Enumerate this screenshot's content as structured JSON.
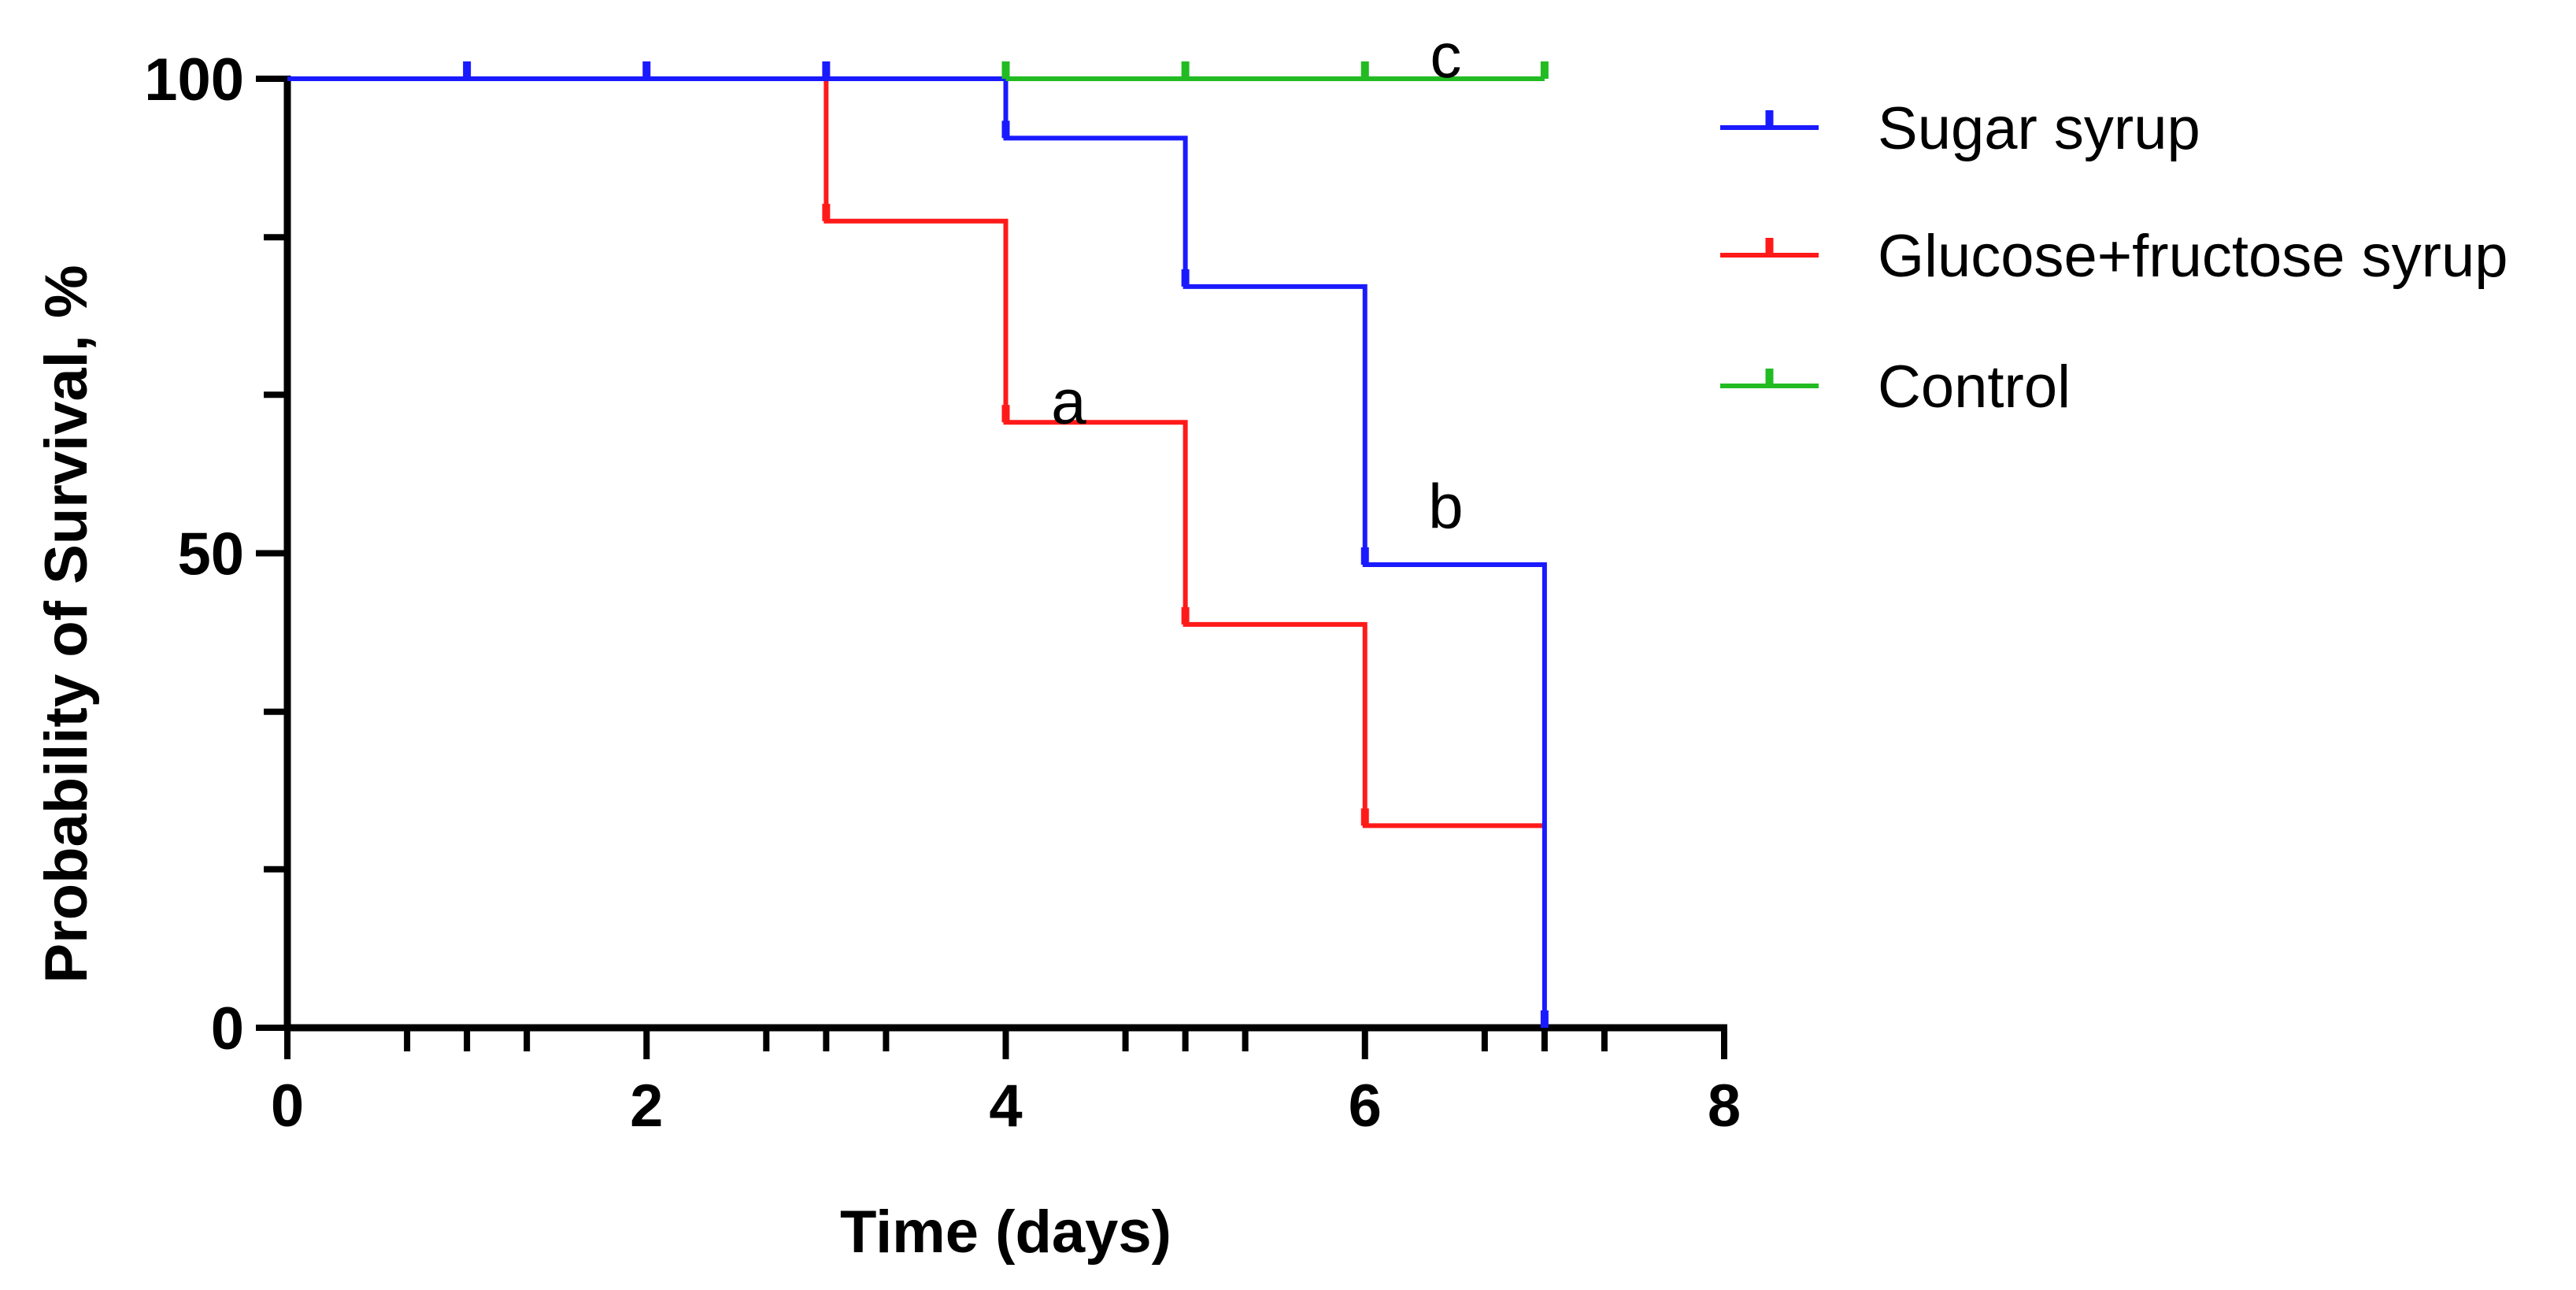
{
  "chart_data": {
    "type": "line",
    "subtype": "kaplan-meier-step",
    "title": "",
    "xlabel": "Time (days)",
    "ylabel": "Probability of Survival, %",
    "xlim": [
      0,
      8
    ],
    "ylim": [
      0,
      100
    ],
    "x_major_ticks": [
      0,
      2,
      4,
      6,
      8
    ],
    "x_tick_labels": [
      "0",
      "2",
      "4",
      "6",
      "8"
    ],
    "x_minor_ticks": [
      1,
      3,
      5,
      7
    ],
    "y_major_ticks": [
      0,
      50,
      100
    ],
    "y_tick_labels": [
      "0",
      "50",
      "100"
    ],
    "y_minor_ticks": [
      16.7,
      33.3,
      66.7,
      83.3
    ],
    "grid": false,
    "legend_position": "top-right",
    "series": [
      {
        "name": "Sugar syrup",
        "color": "#1a1aff",
        "times": [
          0,
          4,
          5,
          6,
          7
        ],
        "survival": [
          100,
          93.75,
          78.1,
          48.8,
          0
        ],
        "end_time": 7,
        "censor_marks": [
          [
            1,
            100
          ],
          [
            2,
            100
          ],
          [
            3,
            100
          ],
          [
            4,
            93.75
          ],
          [
            5,
            78.1
          ],
          [
            6,
            48.8
          ],
          [
            7,
            0
          ]
        ]
      },
      {
        "name": "Glucose+fructose syrup",
        "color": "#ff1a1a",
        "times": [
          0,
          3,
          4,
          5,
          6
        ],
        "survival": [
          100,
          85,
          63.8,
          42.5,
          21.3
        ],
        "end_time": 7,
        "censor_marks": [
          [
            3,
            85
          ],
          [
            4,
            63.8
          ],
          [
            5,
            42.5
          ],
          [
            6,
            21.3
          ]
        ]
      },
      {
        "name": "Control",
        "color": "#22bb22",
        "times": [
          4
        ],
        "survival": [
          100
        ],
        "end_time": 7,
        "censor_marks": [
          [
            4,
            100
          ],
          [
            5,
            100
          ],
          [
            6,
            100
          ],
          [
            7,
            100
          ]
        ]
      }
    ],
    "annotations": [
      {
        "text": "a",
        "x": 4.35,
        "y": 66
      },
      {
        "text": "b",
        "x": 6.45,
        "y": 55
      },
      {
        "text": "c",
        "x": 6.45,
        "y": 102.5
      }
    ]
  }
}
